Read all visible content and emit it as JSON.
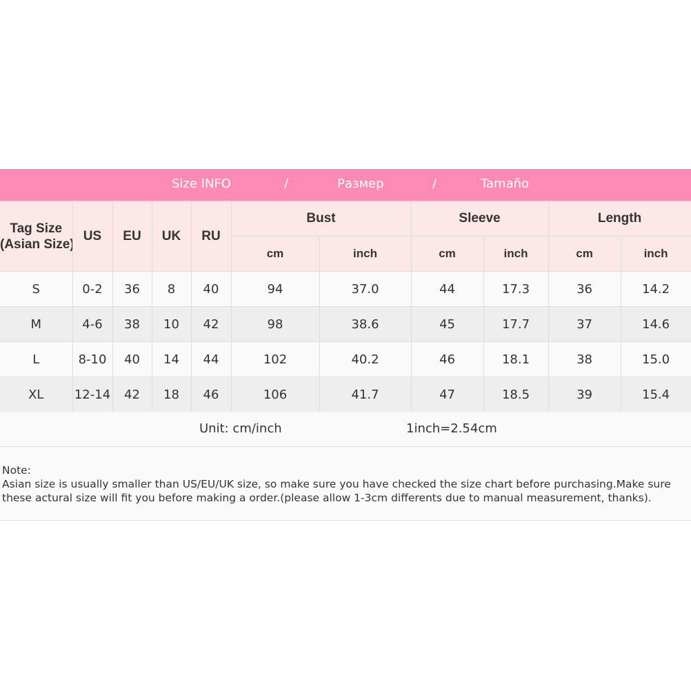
{
  "title_bar": {
    "parts": [
      "Size INFO",
      "/",
      "Размер",
      "/",
      "Tamaño"
    ],
    "color": "#fd8ab4"
  },
  "header": {
    "tag_size": [
      "Tag Size",
      "(Asian Size)"
    ],
    "us": "US",
    "eu": "EU",
    "uk": "UK",
    "ru": "RU",
    "groups": [
      "Bust",
      "Sleeve",
      "Length"
    ],
    "units": [
      "cm",
      "inch",
      "cm",
      "inch",
      "cm",
      "inch"
    ]
  },
  "rows": [
    [
      "S",
      "0-2",
      "36",
      "8",
      "40",
      "94",
      "37.0",
      "44",
      "17.3",
      "36",
      "14.2"
    ],
    [
      "M",
      "4-6",
      "38",
      "10",
      "42",
      "98",
      "38.6",
      "45",
      "17.7",
      "37",
      "14.6"
    ],
    [
      "L",
      "8-10",
      "40",
      "14",
      "44",
      "102",
      "40.2",
      "46",
      "18.1",
      "38",
      "15.0"
    ],
    [
      "XL",
      "12-14",
      "42",
      "18",
      "46",
      "106",
      "41.7",
      "47",
      "18.5",
      "39",
      "15.4"
    ]
  ],
  "unit_row": {
    "unit": "Unit: cm/inch",
    "conversion": "1inch=2.54cm"
  },
  "note": {
    "label": "Note:",
    "line1": "Asian size is usually smaller than US/EU/UK size, so make sure you have checked the size chart before purchasing.Make sure",
    "line2": "these actural size will fit you before making a order.(please allow 1-3cm differents due to manual measurement, thanks)."
  }
}
